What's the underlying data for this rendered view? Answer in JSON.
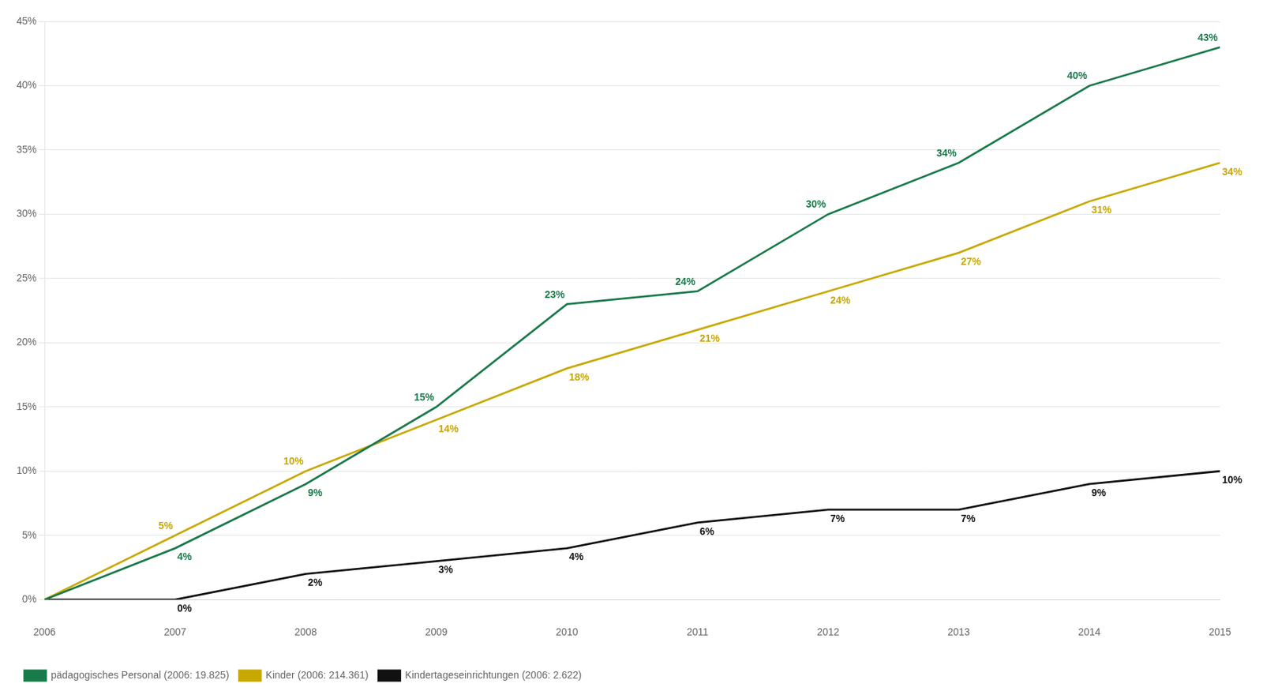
{
  "chart_data": {
    "type": "line",
    "x": [
      2006,
      2007,
      2008,
      2009,
      2010,
      2011,
      2012,
      2013,
      2014,
      2015
    ],
    "series": [
      {
        "name": "pädagogisches Personal (2006: 19.825)",
        "color": "#1a7a4a",
        "values": [
          0,
          4,
          9,
          15,
          23,
          24,
          30,
          34,
          40,
          43
        ],
        "value_labels": [
          null,
          "4%",
          "9%",
          "15%",
          "23%",
          "24%",
          "30%",
          "34%",
          "40%",
          "43%"
        ]
      },
      {
        "name": "Kinder (2006: 214.361)",
        "color": "#c8a800",
        "values": [
          0,
          5,
          10,
          14,
          18,
          21,
          24,
          27,
          31,
          34
        ],
        "value_labels": [
          null,
          "5%",
          "10%",
          "14%",
          "18%",
          "21%",
          "24%",
          "27%",
          "31%",
          "34%"
        ]
      },
      {
        "name": "Kindertageseinrichtungen (2006: 2.622)",
        "color": "#111111",
        "values": [
          0,
          0,
          2,
          3,
          4,
          6,
          7,
          7,
          9,
          10
        ],
        "value_labels": [
          null,
          "0%",
          "2%",
          "3%",
          "4%",
          "6%",
          "7%",
          "7%",
          "9%",
          "10%"
        ]
      }
    ],
    "xlim": [
      2006,
      2015
    ],
    "xticks": [
      2006,
      2007,
      2008,
      2009,
      2010,
      2011,
      2012,
      2013,
      2014,
      2015
    ],
    "ylim": [
      0,
      45
    ],
    "yticks": [
      {
        "value": 0,
        "label": "0%"
      },
      {
        "value": 5,
        "label": "5%"
      },
      {
        "value": 10,
        "label": "10%"
      },
      {
        "value": 15,
        "label": "15%"
      },
      {
        "value": 20,
        "label": "20%"
      },
      {
        "value": 25,
        "label": "25%"
      },
      {
        "value": 30,
        "label": "30%"
      },
      {
        "value": 35,
        "label": "35%"
      },
      {
        "value": 40,
        "label": "40%"
      },
      {
        "value": 45,
        "label": "45%"
      }
    ],
    "grid": "y",
    "legend": "bottom",
    "data_labels": true
  }
}
